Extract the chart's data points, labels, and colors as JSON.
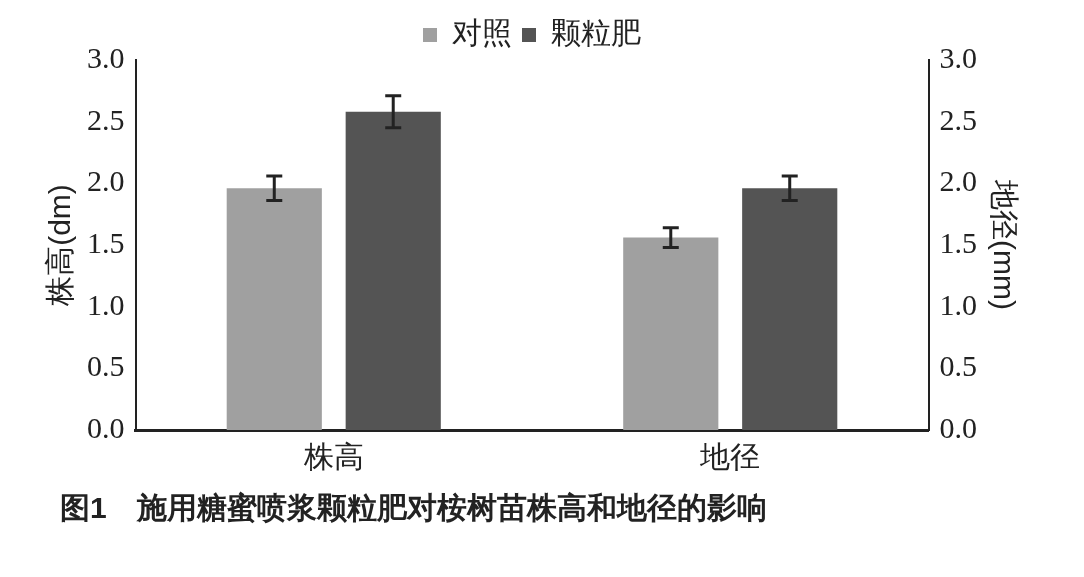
{
  "chart_data": {
    "type": "bar",
    "title": "图1　施用糖蜜喷浆颗粒肥对桉树苗株高和地径的影响",
    "categories": [
      "株高",
      "地径"
    ],
    "series": [
      {
        "name": "对照",
        "color": "#a0a0a0",
        "values": [
          1.96,
          1.56
        ],
        "errors": [
          0.1,
          0.08
        ]
      },
      {
        "name": "颗粒肥",
        "color": "#545454",
        "values": [
          2.58,
          1.96
        ],
        "errors": [
          0.13,
          0.1
        ]
      }
    ],
    "ylabel": "株高(dm)",
    "y2label": "地径(mm)",
    "ylim": [
      0,
      3
    ],
    "yticks": [
      {
        "value": 0,
        "label": "0.0"
      },
      0.5,
      {
        "value": 1,
        "label": "1.0"
      },
      1.5,
      {
        "value": 2,
        "label": "2.0"
      },
      2.5,
      {
        "value": 3,
        "label": "3.0"
      }
    ],
    "y2lim": [
      0,
      3
    ],
    "y2ticks": [
      {
        "value": 0,
        "label": "0.0"
      },
      0.5,
      {
        "value": 1,
        "label": "1.0"
      },
      1.5,
      {
        "value": 2,
        "label": "2.0"
      },
      2.5,
      {
        "value": 3,
        "label": "3.0"
      }
    ],
    "legend": "top",
    "grid": false
  }
}
